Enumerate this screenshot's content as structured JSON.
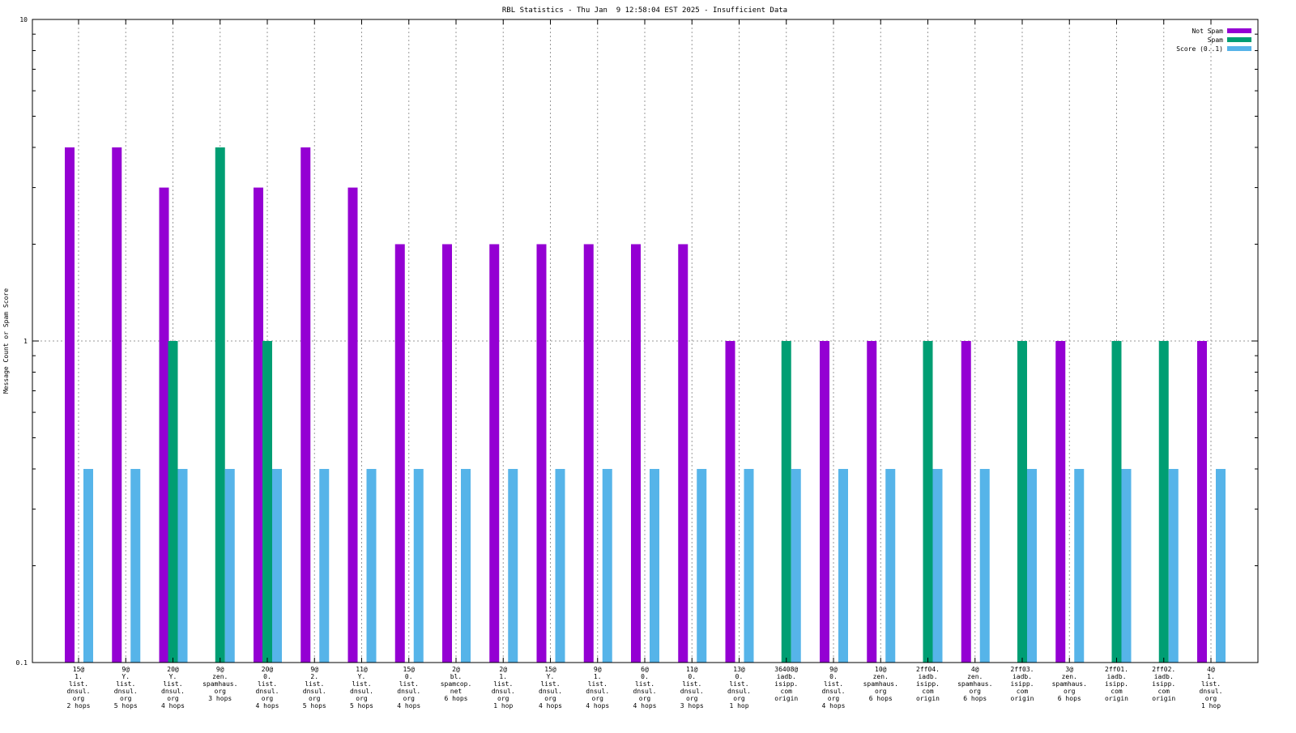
{
  "chart_data": {
    "type": "bar",
    "title": "RBL Statistics - Thu Jan  9 12:58:04 EST 2025 - Insufficient Data",
    "xlabel": "",
    "ylabel": "Message Count or Spam Score",
    "yscale": "log",
    "ylim": [
      0.1,
      10
    ],
    "y_tick_labels": [
      "0.1",
      "1",
      "10"
    ],
    "grid": true,
    "legend_position": "top-right",
    "categories": [
      [
        "15@",
        "1.",
        "list.",
        "dnsul.",
        "org",
        "2 hops"
      ],
      [
        "9@",
        "Y.",
        "list.",
        "dnsul.",
        "org",
        "5 hops"
      ],
      [
        "20@",
        "Y.",
        "list.",
        "dnsul.",
        "org",
        "4 hops"
      ],
      [
        "9@",
        "zen.",
        "spamhaus.",
        "org",
        "3 hops"
      ],
      [
        "20@",
        "0.",
        "list.",
        "dnsul.",
        "org",
        "4 hops"
      ],
      [
        "9@",
        "2.",
        "list.",
        "dnsul.",
        "org",
        "5 hops"
      ],
      [
        "11@",
        "Y.",
        "list.",
        "dnsul.",
        "org",
        "5 hops"
      ],
      [
        "15@",
        "0.",
        "list.",
        "dnsul.",
        "org",
        "4 hops"
      ],
      [
        "2@",
        "bl.",
        "spamcop.",
        "net",
        "6 hops"
      ],
      [
        "2@",
        "1.",
        "list.",
        "dnsul.",
        "org",
        "1 hop"
      ],
      [
        "15@",
        "Y.",
        "list.",
        "dnsul.",
        "org",
        "4 hops"
      ],
      [
        "9@",
        "1.",
        "list.",
        "dnsul.",
        "org",
        "4 hops"
      ],
      [
        "6@",
        "0.",
        "list.",
        "dnsul.",
        "org",
        "4 hops"
      ],
      [
        "11@",
        "0.",
        "list.",
        "dnsul.",
        "org",
        "3 hops"
      ],
      [
        "13@",
        "0.",
        "list.",
        "dnsul.",
        "org",
        "1 hop"
      ],
      [
        "36408@",
        "iadb.",
        "isipp.",
        "com",
        "origin"
      ],
      [
        "9@",
        "0.",
        "list.",
        "dnsul.",
        "org",
        "4 hops"
      ],
      [
        "10@",
        "zen.",
        "spamhaus.",
        "org",
        "6 hops"
      ],
      [
        "2ff04.",
        "iadb.",
        "isipp.",
        "com",
        "origin"
      ],
      [
        "4@",
        "zen.",
        "spamhaus.",
        "org",
        "6 hops"
      ],
      [
        "2ff03.",
        "iadb.",
        "isipp.",
        "com",
        "origin"
      ],
      [
        "3@",
        "zen.",
        "spamhaus.",
        "org",
        "6 hops"
      ],
      [
        "2ff01.",
        "iadb.",
        "isipp.",
        "com",
        "origin"
      ],
      [
        "2ff02.",
        "iadb.",
        "isipp.",
        "com",
        "origin"
      ],
      [
        "4@",
        "1.",
        "list.",
        "dnsul.",
        "org",
        "1 hop"
      ]
    ],
    "series": [
      {
        "name": "Not Spam",
        "color": "#9400d3",
        "values": [
          4,
          4,
          3,
          0,
          3,
          4,
          3,
          2,
          2,
          2,
          2,
          2,
          2,
          2,
          1,
          0,
          1,
          1,
          0,
          1,
          0,
          1,
          0,
          0,
          1
        ]
      },
      {
        "name": "Spam",
        "color": "#009e73",
        "values": [
          0,
          0,
          1,
          4,
          1,
          0,
          0,
          0,
          0,
          0,
          0,
          0,
          0,
          0,
          0,
          1,
          0,
          0,
          1,
          0,
          1,
          0,
          1,
          1,
          0
        ]
      },
      {
        "name": "Score (0..1)",
        "color": "#56b4e9",
        "values": [
          0.4,
          0.4,
          0.4,
          0.4,
          0.4,
          0.4,
          0.4,
          0.4,
          0.4,
          0.4,
          0.4,
          0.4,
          0.4,
          0.4,
          0.4,
          0.4,
          0.4,
          0.4,
          0.4,
          0.4,
          0.4,
          0.4,
          0.4,
          0.4,
          0.4
        ]
      }
    ]
  }
}
